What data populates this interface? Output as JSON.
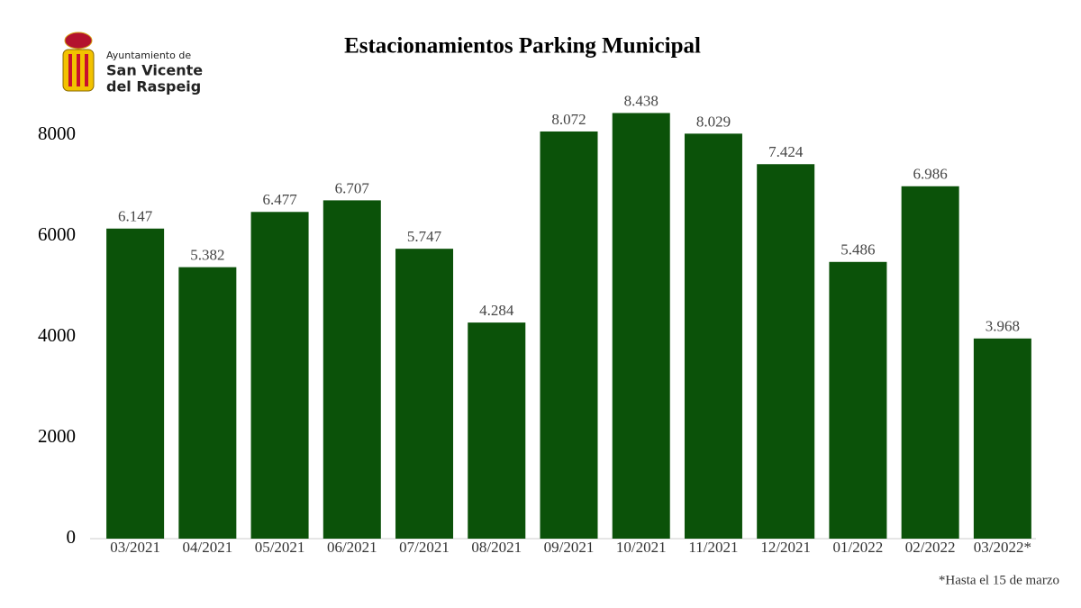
{
  "logo": {
    "lines": [
      "Ayuntamiento de",
      "San Vicente",
      "del Raspeig"
    ]
  },
  "chart_data": {
    "type": "bar",
    "title": "Estacionamientos Parking Municipal",
    "categories": [
      "03/2021",
      "04/2021",
      "05/2021",
      "06/2021",
      "07/2021",
      "08/2021",
      "09/2021",
      "10/2021",
      "11/2021",
      "12/2021",
      "01/2022",
      "02/2022",
      "03/2022*"
    ],
    "values": [
      6147,
      5382,
      6477,
      6707,
      5747,
      4284,
      8072,
      8438,
      8029,
      7424,
      5486,
      6986,
      3968
    ],
    "value_labels": [
      "6.147",
      "5.382",
      "6.477",
      "6.707",
      "5.747",
      "4.284",
      "8.072",
      "8.438",
      "8.029",
      "7.424",
      "5.486",
      "6.986",
      "3.968"
    ],
    "color": "#0b5209",
    "ylim": [
      0,
      8500
    ],
    "yticks": [
      0,
      2000,
      4000,
      6000,
      8000
    ],
    "grid": false,
    "note": "*Hasta el 15 de marzo"
  }
}
